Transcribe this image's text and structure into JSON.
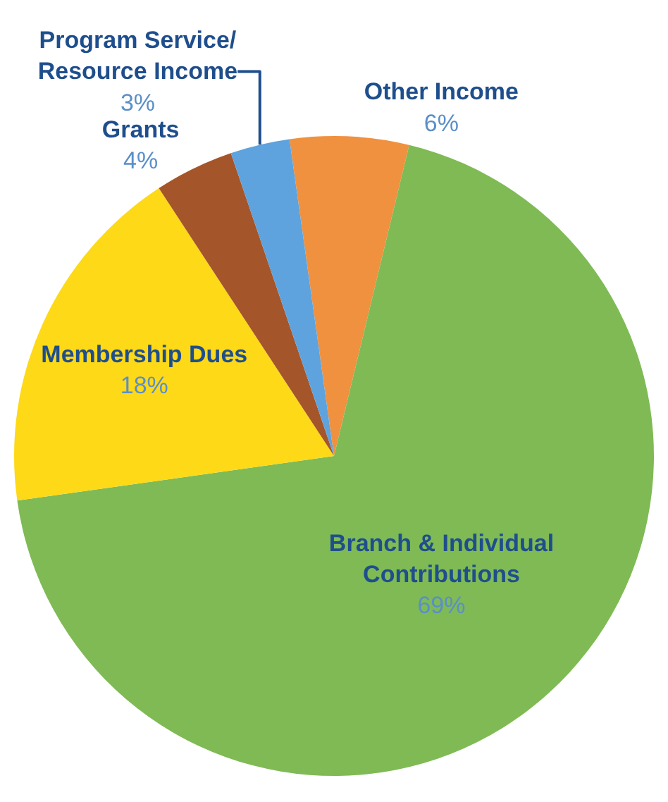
{
  "chart_data": {
    "type": "pie",
    "categories": [
      "Other Income",
      "Branch & Individual Contributions",
      "Membership Dues",
      "Grants",
      "Program Service/ Resource Income"
    ],
    "values": [
      6,
      69,
      18,
      4,
      3
    ],
    "value_labels": [
      "6%",
      "69%",
      "18%",
      "4%",
      "3%"
    ],
    "colors": [
      "#f0913f",
      "#7fba55",
      "#fdd917",
      "#a5552a",
      "#5ea3dd"
    ],
    "legend": false
  }
}
